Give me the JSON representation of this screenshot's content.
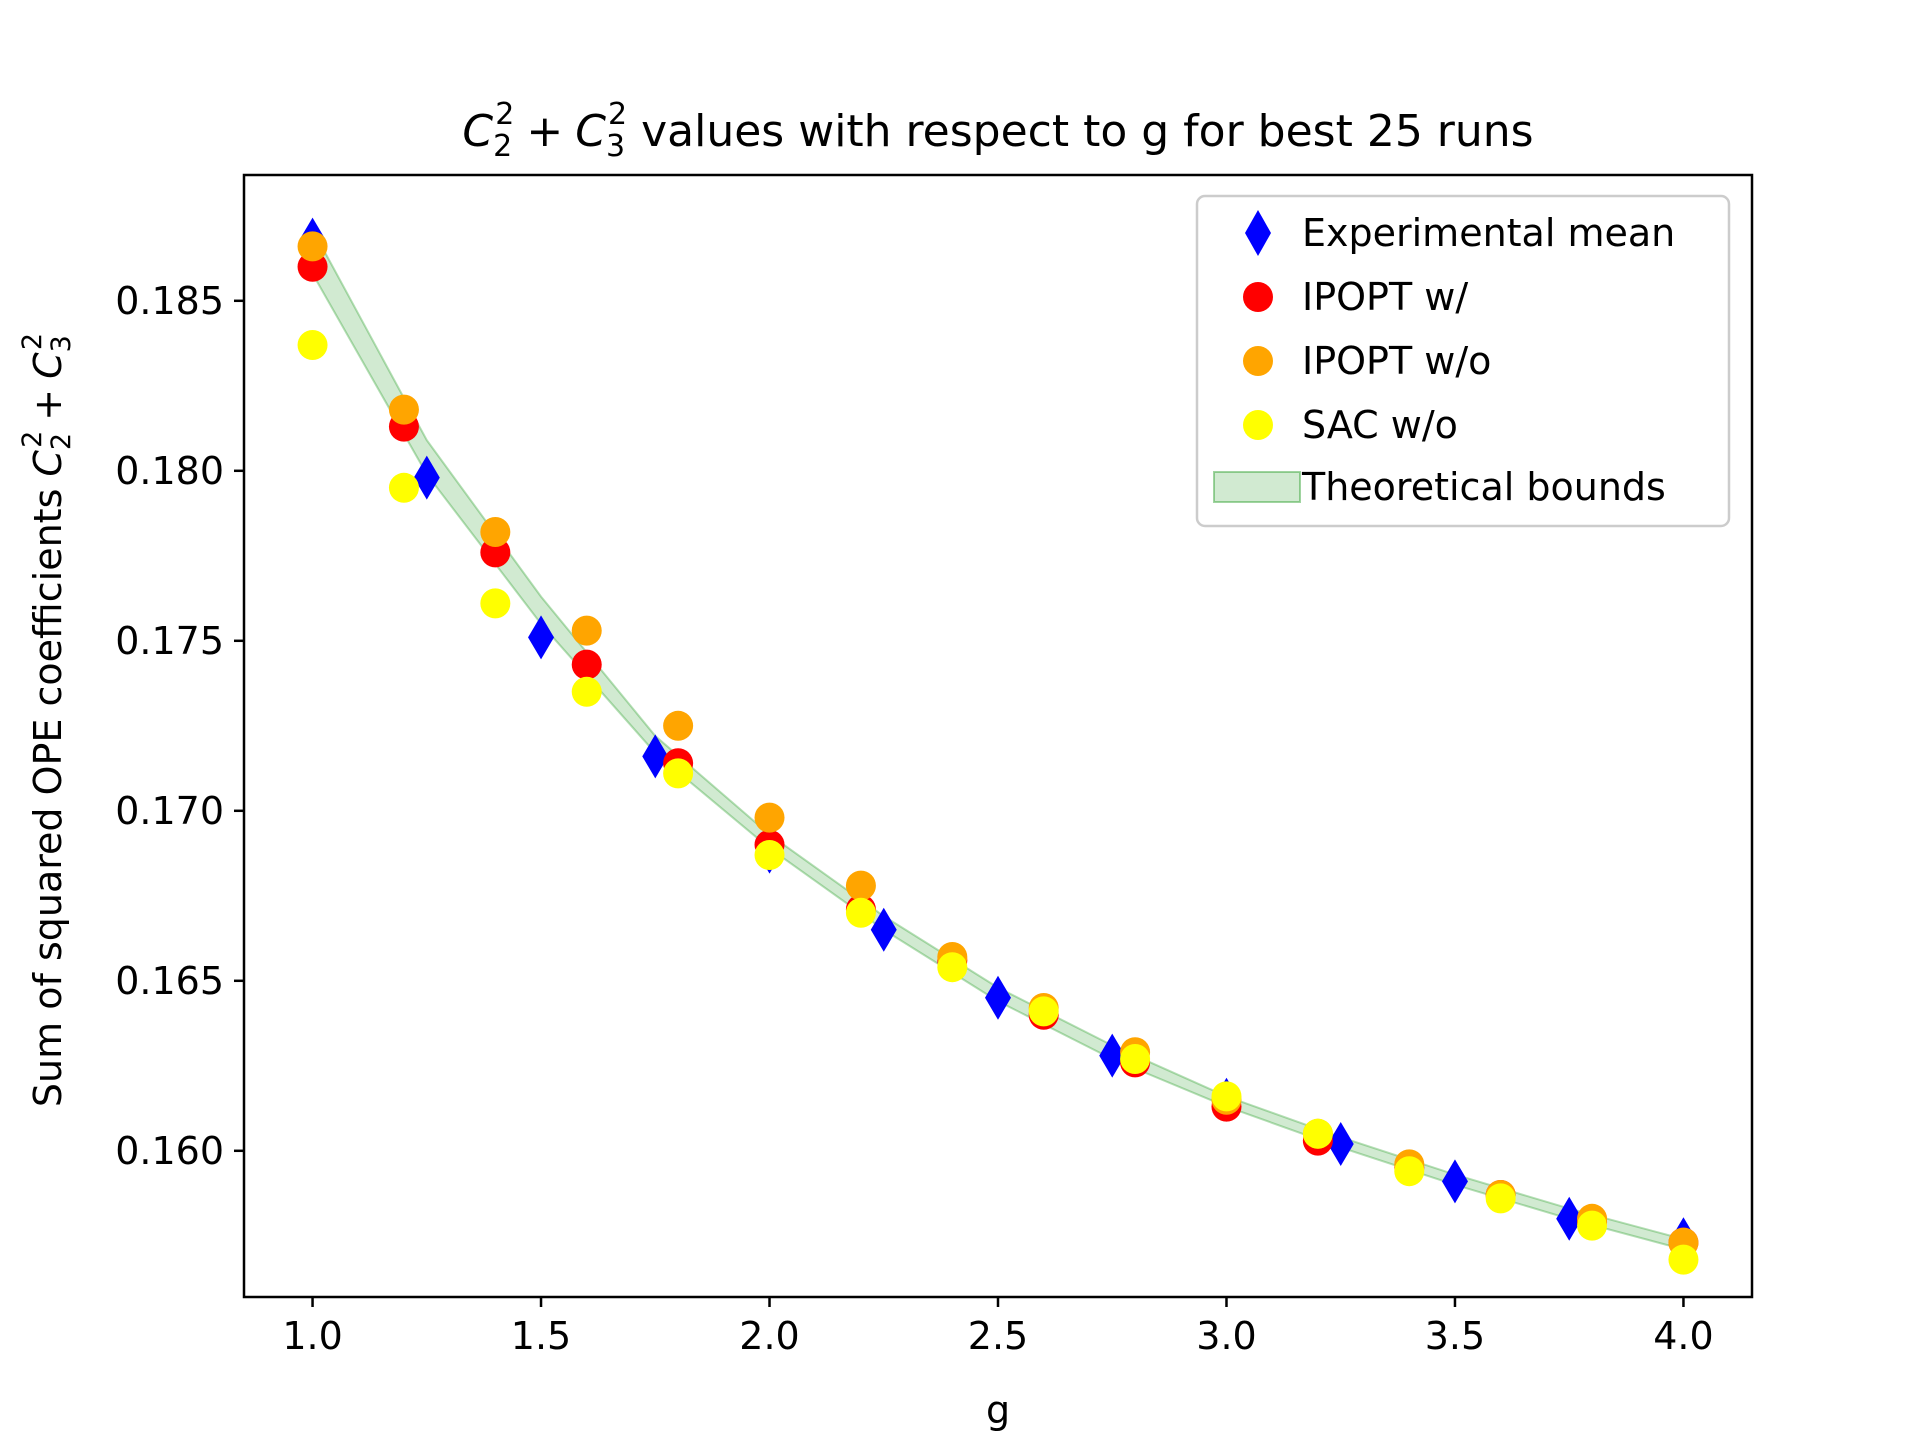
{
  "chart_data": {
    "type": "scatter",
    "title": {
      "math": {
        "base": "C",
        "sub1": "2",
        "sup1": "2",
        "op": "+",
        "sub2": "3",
        "sup2": "2"
      },
      "rest": "values with respect to g for best 25 runs"
    },
    "xlabel": "g",
    "ylabel": {
      "text": "Sum of squared OPE coefficients",
      "math": {
        "base": "C",
        "sub1": "2",
        "sup1": "2",
        "op": "+",
        "sub2": "3",
        "sup2": "2"
      }
    },
    "xlim": [
      0.85,
      4.15
    ],
    "ylim": [
      0.1557,
      0.1887
    ],
    "xticks": [
      {
        "value": 1.0,
        "label": "1.0"
      },
      {
        "value": 1.5,
        "label": "1.5"
      },
      {
        "value": 2.0,
        "label": "2.0"
      },
      {
        "value": 2.5,
        "label": "2.5"
      },
      {
        "value": 3.0,
        "label": "3.0"
      },
      {
        "value": 3.5,
        "label": "3.5"
      },
      {
        "value": 4.0,
        "label": "4.0"
      }
    ],
    "yticks": [
      {
        "value": 0.16,
        "label": "0.160"
      },
      {
        "value": 0.165,
        "label": "0.165"
      },
      {
        "value": 0.17,
        "label": "0.170"
      },
      {
        "value": 0.175,
        "label": "0.175"
      },
      {
        "value": 0.18,
        "label": "0.180"
      },
      {
        "value": 0.185,
        "label": "0.185"
      }
    ],
    "grid": false,
    "legend_position": "top-right",
    "series": [
      {
        "name": "Experimental mean",
        "marker": "diamond",
        "color": "#0000ff",
        "x": [
          1.0,
          1.25,
          1.5,
          1.75,
          2.0,
          2.25,
          2.5,
          2.75,
          3.0,
          3.25,
          3.5,
          3.75,
          4.0
        ],
        "y": [
          0.1868,
          0.1798,
          0.1751,
          0.1716,
          0.1688,
          0.1665,
          0.1645,
          0.1628,
          0.1615,
          0.1602,
          0.1591,
          0.158,
          0.1574
        ]
      },
      {
        "name": "IPOPT w/",
        "marker": "circle",
        "color": "#ff0000",
        "x": [
          1.0,
          1.2,
          1.4,
          1.6,
          1.8,
          2.0,
          2.2,
          2.4,
          2.6,
          2.8,
          3.0,
          3.2,
          3.4,
          3.6,
          3.8,
          4.0
        ],
        "y": [
          0.186,
          0.1813,
          0.1776,
          0.1743,
          0.1714,
          0.169,
          0.1671,
          0.1656,
          0.164,
          0.1626,
          0.1613,
          0.1603,
          0.1595,
          0.1587,
          0.1579,
          0.1573
        ]
      },
      {
        "name": "IPOPT w/o",
        "marker": "circle",
        "color": "#ffa500",
        "x": [
          1.0,
          1.2,
          1.4,
          1.6,
          1.8,
          2.0,
          2.2,
          2.4,
          2.6,
          2.8,
          3.0,
          3.2,
          3.4,
          3.6,
          3.8,
          4.0
        ],
        "y": [
          0.1866,
          0.1818,
          0.1782,
          0.1753,
          0.1725,
          0.1698,
          0.1678,
          0.1657,
          0.1642,
          0.1629,
          0.1615,
          0.1605,
          0.1596,
          0.1587,
          0.158,
          0.1573
        ]
      },
      {
        "name": "SAC w/o",
        "marker": "circle",
        "color": "#ffff00",
        "x": [
          1.0,
          1.2,
          1.4,
          1.6,
          1.8,
          2.0,
          2.2,
          2.4,
          2.6,
          2.8,
          3.0,
          3.2,
          3.4,
          3.6,
          3.8,
          4.0
        ],
        "y": [
          0.1837,
          0.1795,
          0.1761,
          0.1735,
          0.1711,
          0.1687,
          0.167,
          0.1654,
          0.1641,
          0.1627,
          0.1616,
          0.1605,
          0.1594,
          0.1586,
          0.1578,
          0.1568
        ]
      }
    ],
    "band": {
      "name": "Theoretical bounds",
      "color": "#2ca02c",
      "x": [
        1.0,
        1.25,
        1.5,
        1.75,
        2.0,
        2.25,
        2.5,
        2.75,
        3.0,
        3.25,
        3.5,
        3.75,
        4.0
      ],
      "lower": [
        0.1858,
        0.1799,
        0.1755,
        0.1717,
        0.1689,
        0.1665,
        0.1644,
        0.1627,
        0.1613,
        0.1601,
        0.159,
        0.158,
        0.1571
      ],
      "upper": [
        0.1871,
        0.1809,
        0.1763,
        0.1722,
        0.1693,
        0.1669,
        0.1648,
        0.1631,
        0.1616,
        0.1604,
        0.1593,
        0.1583,
        0.1574
      ]
    }
  }
}
